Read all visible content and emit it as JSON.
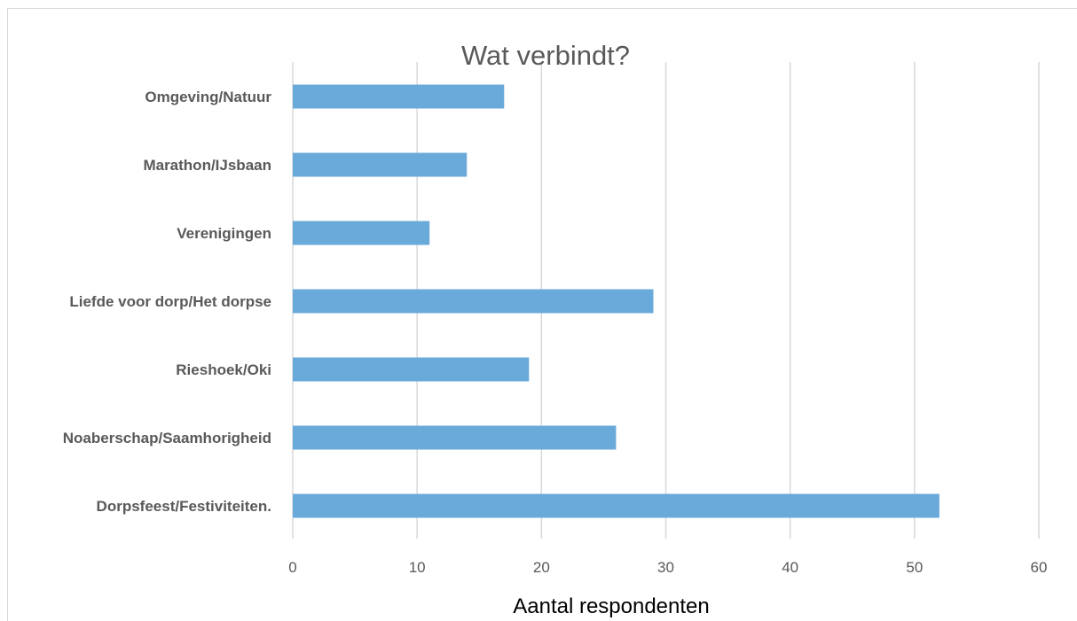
{
  "chart_data": {
    "type": "bar",
    "orientation": "horizontal",
    "title": "Wat verbindt?",
    "xlabel": "Aantal respondenten",
    "ylabel": "",
    "categories": [
      "Omgeving/Natuur",
      "Marathon/IJsbaan",
      "Verenigingen",
      "Liefde voor dorp/Het dorpse",
      "Rieshoek/Oki",
      "Noaberschap/Saamhorigheid",
      "Dorpsfeest/Festiviteiten."
    ],
    "values": [
      17,
      14,
      11,
      29,
      19,
      26,
      52
    ],
    "xlim": [
      0,
      60
    ],
    "xticks": [
      0,
      10,
      20,
      30,
      40,
      50,
      60
    ],
    "grid": true,
    "legend": "none",
    "colors": {
      "bar": "#6aaadb",
      "grid": "#d9d9d9",
      "text": "#595959"
    }
  }
}
